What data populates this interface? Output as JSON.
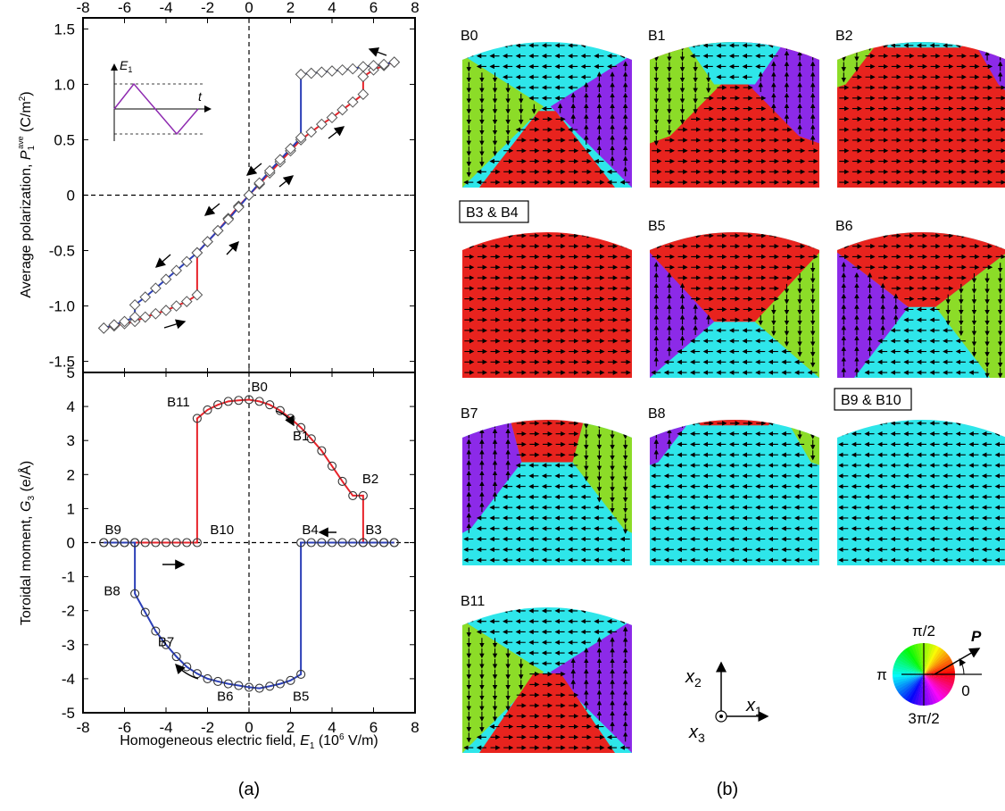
{
  "panel_labels": {
    "a": "(a)",
    "b": "(b)"
  },
  "x_axis": {
    "title_prefix": "Homogeneous electric field, ",
    "var": "E",
    "sub": "1",
    "unit_pre": " (10",
    "unit_exp": "6",
    "unit_post": " V/m)",
    "ticks": [
      "-8",
      "-6",
      "-4",
      "-2",
      "0",
      "2",
      "4",
      "6",
      "8"
    ]
  },
  "top_y_axis": {
    "title_prefix": "Average polarization, ",
    "var": "P",
    "sub": "1",
    "sup": "ave",
    "unit": " (C/m",
    "unit_exp": "2",
    "unit_end": ")",
    "ticks": [
      "-1.5",
      "-1.0",
      "-0.5",
      "0",
      "0.5",
      "1.0",
      "1.5"
    ]
  },
  "bottom_y_axis": {
    "title_prefix": "Toroidal moment, ",
    "var": "G",
    "sub": "3",
    "unit": " (e/Å)",
    "ticks": [
      "-5",
      "-4",
      "-3",
      "-2",
      "-1",
      "0",
      "1",
      "2",
      "3",
      "4",
      "5"
    ]
  },
  "inset": {
    "y_var": "E",
    "y_sub": "1",
    "x_var": "t"
  },
  "chart_data": [
    {
      "type": "line",
      "title": "",
      "xlabel": "Homogeneous electric field, E1 (10^6 V/m)",
      "ylabel": "Average polarization, P1 ave (C/m2)",
      "xlim": [
        -8,
        8
      ],
      "ylim": [
        -1.6,
        1.6
      ],
      "grid": false,
      "series": [
        {
          "color": "#e8232a",
          "x": [
            -7,
            -6.5,
            -6,
            -5.5,
            -5,
            -4.5,
            -4,
            -3.5,
            -3,
            -2.5,
            -2.5,
            -2,
            -1.5,
            -1,
            -0.5,
            0,
            0.5,
            1,
            1.5,
            2,
            2.5,
            3,
            3.5,
            4,
            4.5,
            5,
            5.5,
            5.5,
            6,
            6.5,
            7
          ],
          "y": [
            -1.2,
            -1.18,
            -1.16,
            -1.14,
            -1.1,
            -1.07,
            -1.04,
            -1.0,
            -0.96,
            -0.9,
            -0.52,
            -0.42,
            -0.32,
            -0.21,
            -0.1,
            0,
            0.1,
            0.2,
            0.3,
            0.4,
            0.5,
            0.57,
            0.64,
            0.7,
            0.77,
            0.84,
            0.91,
            1.07,
            1.13,
            1.17,
            1.2
          ]
        },
        {
          "color": "#2b3fb7",
          "x": [
            7,
            6.5,
            6,
            5.5,
            5,
            4.5,
            4,
            3.5,
            3,
            2.5,
            2.5,
            2,
            1.5,
            1,
            0.5,
            0,
            -0.5,
            -1,
            -1.5,
            -2,
            -2.5,
            -3,
            -3.5,
            -4,
            -4.5,
            -5,
            -5.5,
            -5.5,
            -6,
            -6.5,
            -7
          ],
          "y": [
            1.2,
            1.18,
            1.17,
            1.16,
            1.14,
            1.13,
            1.12,
            1.11,
            1.1,
            1.09,
            0.52,
            0.42,
            0.32,
            0.22,
            0.11,
            0,
            -0.11,
            -0.22,
            -0.32,
            -0.42,
            -0.52,
            -0.6,
            -0.68,
            -0.76,
            -0.84,
            -0.92,
            -0.99,
            -1.1,
            -1.14,
            -1.17,
            -1.2
          ]
        }
      ]
    },
    {
      "type": "line",
      "title": "",
      "xlabel": "Homogeneous electric field, E1 (10^6 V/m)",
      "ylabel": "Toroidal moment, G3 (e/Å)",
      "xlim": [
        -8,
        8
      ],
      "ylim": [
        -5,
        5
      ],
      "grid": false,
      "series": [
        {
          "color": "#e8232a",
          "x": [
            -7,
            -6.5,
            -6,
            -5.5,
            -5,
            -4.5,
            -4,
            -3.5,
            -3,
            -2.5,
            -2.5,
            -2,
            -1.5,
            -1,
            -0.5,
            0,
            0.5,
            1,
            1.5,
            2,
            2.5,
            3,
            3.5,
            4,
            4.5,
            5,
            5.5,
            5.5,
            6,
            6.5,
            7
          ],
          "y": [
            0,
            0,
            0,
            0,
            0,
            0,
            0,
            0,
            0,
            0,
            3.65,
            3.9,
            4.05,
            4.15,
            4.18,
            4.2,
            4.15,
            4.05,
            3.88,
            3.65,
            3.38,
            3.05,
            2.7,
            2.25,
            1.8,
            1.38,
            1.38,
            0,
            0,
            0,
            0
          ]
        },
        {
          "color": "#2b3fb7",
          "x": [
            7,
            6.5,
            6,
            5.5,
            5,
            4.5,
            4,
            3.5,
            3,
            2.5,
            2.5,
            2,
            1.5,
            1,
            0.5,
            0,
            -0.5,
            -1,
            -1.5,
            -2,
            -2.5,
            -3,
            -3.5,
            -4,
            -4.5,
            -5,
            -5.5,
            -5.5,
            -6,
            -6.5,
            -7
          ],
          "y": [
            0,
            0,
            0,
            0,
            0,
            0,
            0,
            0,
            0,
            0,
            -3.87,
            -4.05,
            -4.15,
            -4.22,
            -4.28,
            -4.25,
            -4.2,
            -4.15,
            -4.08,
            -4.0,
            -3.85,
            -3.65,
            -3.35,
            -3.0,
            -2.6,
            -2.05,
            -1.5,
            0,
            0,
            0,
            0
          ]
        }
      ],
      "annotations": [
        {
          "text": "B0",
          "x": 0.5,
          "y": 4.45
        },
        {
          "text": "B1",
          "x": 2.5,
          "y": 3.0
        },
        {
          "text": "B2",
          "x": 5.85,
          "y": 1.75
        },
        {
          "text": "B3",
          "x": 6.0,
          "y": 0.25
        },
        {
          "text": "B4",
          "x": 2.95,
          "y": 0.25
        },
        {
          "text": "B5",
          "x": 2.5,
          "y": -4.65
        },
        {
          "text": "B6",
          "x": -1.15,
          "y": -4.65
        },
        {
          "text": "B7",
          "x": -4.0,
          "y": -3.05
        },
        {
          "text": "B8",
          "x": -6.6,
          "y": -1.55
        },
        {
          "text": "B9",
          "x": -6.55,
          "y": 0.25
        },
        {
          "text": "B10",
          "x": -1.3,
          "y": 0.25
        },
        {
          "text": "B11",
          "x": -3.4,
          "y": 4.0
        }
      ]
    }
  ],
  "domain_panels": [
    {
      "label": "B0",
      "boxed": false
    },
    {
      "label": "B1",
      "boxed": false
    },
    {
      "label": "B2",
      "boxed": false
    },
    {
      "label": "B3 & B4",
      "boxed": true
    },
    {
      "label": "B5",
      "boxed": false
    },
    {
      "label": "B6",
      "boxed": false
    },
    {
      "label": "B7",
      "boxed": false
    },
    {
      "label": "B8",
      "boxed": false
    },
    {
      "label": "B9 & B10",
      "boxed": true
    },
    {
      "label": "B11",
      "boxed": false
    }
  ],
  "coordinate_axes": {
    "x1": "x",
    "x1_sub": "1",
    "x2": "x",
    "x2_sub": "2",
    "x3": "x",
    "x3_sub": "3"
  },
  "color_wheel": {
    "top": "π/2",
    "left": "π",
    "bottom": "3π/2",
    "right": "0",
    "vector": "P"
  },
  "colors": {
    "red": "#e8232a",
    "blue": "#2b3fb7",
    "domain_red": "#e8231e",
    "domain_cyan": "#2ee6ea",
    "domain_green": "#8cdc28",
    "domain_purple": "#8c2ae8"
  }
}
